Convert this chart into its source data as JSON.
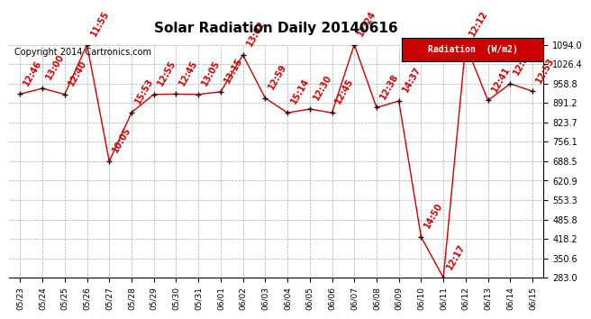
{
  "title": "Solar Radiation Daily 20140616",
  "copyright": "Copyright 2014 Cartronics.com",
  "legend_label": "Radiation  (W/m2)",
  "x_labels": [
    "05/23",
    "05/24",
    "05/25",
    "05/26",
    "05/27",
    "05/28",
    "05/29",
    "05/30",
    "05/31",
    "06/01",
    "06/02",
    "06/03",
    "06/04",
    "06/05",
    "06/06",
    "06/07",
    "06/08",
    "06/09",
    "06/10",
    "06/11",
    "06/12",
    "06/13",
    "06/14",
    "06/15"
  ],
  "y_values": [
    922,
    942,
    921,
    1094,
    688,
    858,
    921,
    922,
    921,
    930,
    1058,
    908,
    857,
    870,
    857,
    1094,
    875,
    898,
    425,
    283,
    1094,
    900,
    958,
    932
  ],
  "annotations": [
    "12:46",
    "13:00",
    "12:40",
    "11:55",
    "10:05",
    "15:53",
    "12:55",
    "12:45",
    "13:05",
    "13:15",
    "13:02",
    "12:59",
    "15:14",
    "12:30",
    "12:45",
    "12:24",
    "12:38",
    "14:37",
    "14:50",
    "12:17",
    "12:12",
    "12:41",
    "12:39",
    "12:53"
  ],
  "y_ticks": [
    283.0,
    350.6,
    418.2,
    485.8,
    553.3,
    620.9,
    688.5,
    756.1,
    823.7,
    891.2,
    958.8,
    1026.4,
    1094.0
  ],
  "ylim": [
    283.0,
    1094.0
  ],
  "line_color": "#cc0000",
  "marker_color": "#000000",
  "bg_color": "#ffffff",
  "grid_color": "#aaaaaa",
  "title_fontsize": 11,
  "annotation_fontsize": 7,
  "copyright_fontsize": 7
}
